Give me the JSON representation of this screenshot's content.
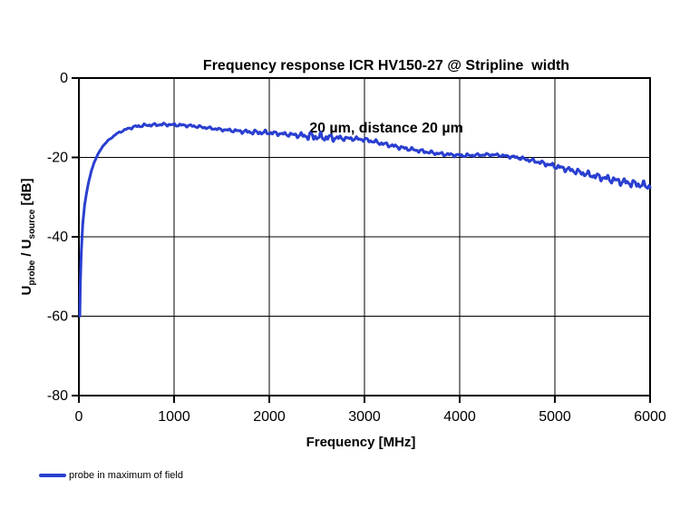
{
  "title": {
    "line1": "Frequency response ICR HV150-27 @ Stripline  width",
    "line2": "20 µm, distance 20 µm"
  },
  "axes": {
    "x": {
      "label": "Frequency [MHz]",
      "ticks": [
        0,
        1000,
        2000,
        3000,
        4000,
        5000,
        6000
      ],
      "range": [
        0,
        6000
      ]
    },
    "y": {
      "label_parts": [
        {
          "text": "U"
        },
        {
          "text": "probe",
          "sub": true
        },
        {
          "text": " / U"
        },
        {
          "text": "source",
          "sub": true
        },
        {
          "text": " [dB]"
        }
      ],
      "ticks": [
        0,
        -20,
        -40,
        -60,
        -80
      ],
      "range": [
        -80,
        0
      ]
    }
  },
  "legend": {
    "items": [
      {
        "label": "probe in maximum of field",
        "color": "#2a3fd0"
      }
    ]
  },
  "colors": {
    "series": "#2a3fd0",
    "grid": "#000000",
    "border": "#000000",
    "background": "#ffffff"
  },
  "chart_data": {
    "type": "line",
    "title": "Frequency response ICR HV150-27 @ Stripline width 20 µm, distance 20 µm",
    "xlabel": "Frequency [MHz]",
    "ylabel": "Uprobe / Usource [dB]",
    "xlim": [
      0,
      6000
    ],
    "ylim": [
      -80,
      0
    ],
    "x_ticks": [
      0,
      1000,
      2000,
      3000,
      4000,
      5000,
      6000
    ],
    "y_ticks": [
      0,
      -20,
      -40,
      -60,
      -80
    ],
    "grid": true,
    "legend_position": "bottom-left",
    "series": [
      {
        "name": "probe in maximum of field",
        "color": "#2a3fd0",
        "points_mhz_db": [
          [
            10,
            -60
          ],
          [
            15,
            -52
          ],
          [
            25,
            -44
          ],
          [
            40,
            -37
          ],
          [
            60,
            -32
          ],
          [
            80,
            -29
          ],
          [
            100,
            -26.5
          ],
          [
            130,
            -23.5
          ],
          [
            160,
            -21.3
          ],
          [
            200,
            -19.2
          ],
          [
            250,
            -17.2
          ],
          [
            300,
            -15.9
          ],
          [
            350,
            -14.9
          ],
          [
            400,
            -14.0
          ],
          [
            450,
            -13.4
          ],
          [
            500,
            -12.9
          ],
          [
            550,
            -12.5
          ],
          [
            600,
            -12.2
          ],
          [
            700,
            -11.9
          ],
          [
            800,
            -11.8
          ],
          [
            900,
            -11.7
          ],
          [
            1000,
            -11.8
          ],
          [
            1100,
            -11.9
          ],
          [
            1200,
            -12.1
          ],
          [
            1300,
            -12.4
          ],
          [
            1400,
            -12.7
          ],
          [
            1500,
            -13.0
          ],
          [
            1600,
            -13.2
          ],
          [
            1700,
            -13.4
          ],
          [
            1800,
            -13.6
          ],
          [
            1900,
            -13.7
          ],
          [
            2000,
            -13.8
          ],
          [
            2100,
            -14.0
          ],
          [
            2200,
            -14.2
          ],
          [
            2300,
            -14.4
          ],
          [
            2400,
            -14.6
          ],
          [
            2500,
            -14.8
          ],
          [
            2600,
            -15.0
          ],
          [
            2700,
            -15.1
          ],
          [
            2800,
            -15.2
          ],
          [
            2900,
            -15.3
          ],
          [
            3000,
            -15.5
          ],
          [
            3100,
            -16.0
          ],
          [
            3200,
            -16.6
          ],
          [
            3300,
            -17.1
          ],
          [
            3400,
            -17.6
          ],
          [
            3500,
            -18.0
          ],
          [
            3600,
            -18.4
          ],
          [
            3700,
            -18.8
          ],
          [
            3800,
            -19.1
          ],
          [
            3900,
            -19.3
          ],
          [
            4000,
            -19.5
          ],
          [
            4100,
            -19.5
          ],
          [
            4200,
            -19.4
          ],
          [
            4300,
            -19.3
          ],
          [
            4400,
            -19.4
          ],
          [
            4500,
            -19.7
          ],
          [
            4600,
            -20.0
          ],
          [
            4700,
            -20.5
          ],
          [
            4800,
            -21.0
          ],
          [
            4900,
            -21.6
          ],
          [
            5000,
            -22.2
          ],
          [
            5100,
            -22.8
          ],
          [
            5200,
            -23.4
          ],
          [
            5300,
            -24.0
          ],
          [
            5400,
            -24.6
          ],
          [
            5500,
            -25.1
          ],
          [
            5600,
            -25.6
          ],
          [
            5700,
            -26.1
          ],
          [
            5800,
            -26.5
          ],
          [
            5900,
            -26.9
          ],
          [
            6000,
            -27.3
          ]
        ],
        "ripple": {
          "period_components": [
            {
              "period": 97,
              "phase": 0.6,
              "weight": 0.55
            },
            {
              "period": 53,
              "phase": 2.0,
              "weight": 0.45
            },
            {
              "period": 29,
              "phase": 4.2,
              "weight": 0.25
            }
          ],
          "amplitude_profile": [
            [
              0,
              0
            ],
            [
              250,
              0.05
            ],
            [
              400,
              0.15
            ],
            [
              600,
              0.35
            ],
            [
              1000,
              0.35
            ],
            [
              1500,
              0.3
            ],
            [
              1900,
              0.6
            ],
            [
              2150,
              0.45
            ],
            [
              2300,
              0.6
            ],
            [
              2450,
              1.1
            ],
            [
              2650,
              0.9
            ],
            [
              2800,
              0.5
            ],
            [
              3200,
              0.5
            ],
            [
              4000,
              0.4
            ],
            [
              4400,
              0.3
            ],
            [
              4800,
              0.5
            ],
            [
              5200,
              0.7
            ],
            [
              5600,
              0.9
            ],
            [
              6000,
              0.95
            ]
          ]
        }
      }
    ]
  }
}
